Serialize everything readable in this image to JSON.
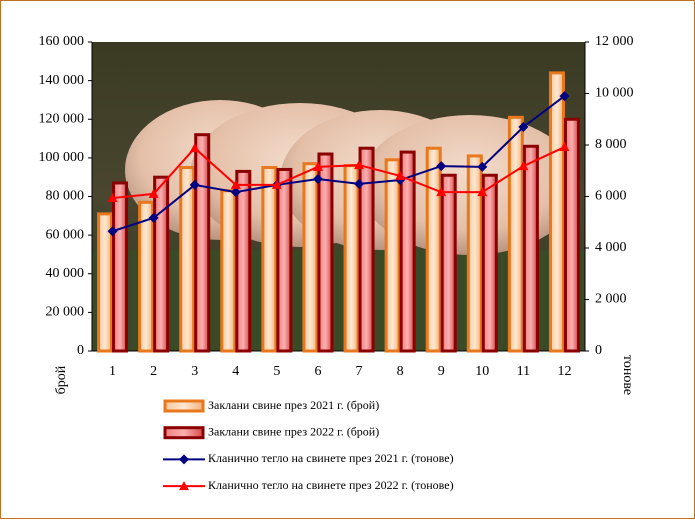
{
  "chart_data": {
    "type": "bar-line",
    "categories": [
      "1",
      "2",
      "3",
      "4",
      "5",
      "6",
      "7",
      "8",
      "9",
      "10",
      "11",
      "12"
    ],
    "y_label": "брой",
    "y2_label": "тонове",
    "ylim": [
      0,
      160000
    ],
    "yticks": [
      0,
      {
        "value": 20000,
        "label": "20 000"
      },
      {
        "value": 40000,
        "label": "40 000"
      },
      {
        "value": 60000,
        "label": "60 000"
      },
      {
        "value": 80000,
        "label": "80 000"
      },
      {
        "value": 100000,
        "label": "100 000"
      },
      {
        "value": 120000,
        "label": "120 000"
      },
      {
        "value": 140000,
        "label": "140 000"
      },
      {
        "value": 160000,
        "label": "160 000"
      }
    ],
    "y2lim": [
      0,
      12000
    ],
    "y2ticks": [
      0,
      {
        "value": 2000,
        "label": "2 000"
      },
      {
        "value": 4000,
        "label": "4 000"
      },
      {
        "value": 6000,
        "label": "6 000"
      },
      {
        "value": 8000,
        "label": "8 000"
      },
      {
        "value": 10000,
        "label": "10 000"
      },
      {
        "value": 12000,
        "label": "12 000"
      }
    ],
    "series": [
      {
        "name": "Заклани свине през 2021 г. (брой)",
        "kind": "bar",
        "color": "#e8781e",
        "values": [
          71000,
          77000,
          95000,
          83000,
          95000,
          97000,
          96000,
          99000,
          105000,
          101000,
          121000,
          144000
        ]
      },
      {
        "name": "Заклани свине през 2022 г. (брой)",
        "kind": "bar",
        "color": "#8b0000",
        "values": [
          87000,
          90000,
          112000,
          93000,
          94000,
          102000,
          105000,
          103000,
          91000,
          91000,
          106000,
          120000
        ]
      },
      {
        "name": "Кланично тегло на свинете през 2021 г. (тонове)",
        "kind": "line",
        "axis": "y2",
        "marker": "diamond",
        "color": "#000080",
        "values": [
          4650,
          5170,
          6450,
          6170,
          6450,
          6680,
          6490,
          6640,
          7180,
          7150,
          8700,
          9900
        ]
      },
      {
        "name": "Кланично тегло на свинете през 2022 г. (тонове)",
        "kind": "line",
        "axis": "y2",
        "marker": "triangle",
        "color": "#ff0000",
        "values": [
          5940,
          6100,
          7880,
          6450,
          6450,
          7150,
          7220,
          6800,
          6170,
          6170,
          7180,
          7920
        ]
      }
    ]
  }
}
